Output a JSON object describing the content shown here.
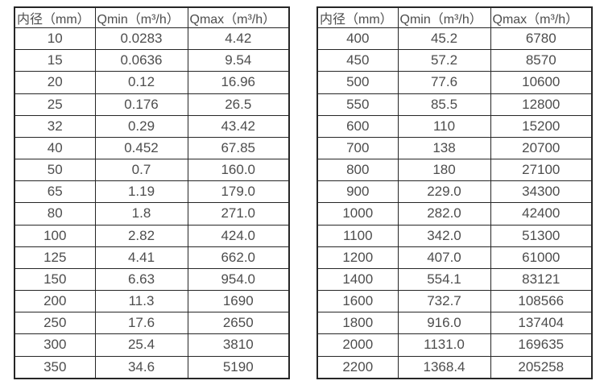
{
  "chart_data": [
    {
      "type": "table",
      "name": "flow-rate-table-small-diameters",
      "columns": [
        "内径（mm）",
        "Qmin（m³/h）",
        "Qmax（m³/h）"
      ],
      "rows": [
        [
          "10",
          "0.0283",
          "4.42"
        ],
        [
          "15",
          "0.0636",
          "9.54"
        ],
        [
          "20",
          "0.12",
          "16.96"
        ],
        [
          "25",
          "0.176",
          "26.5"
        ],
        [
          "32",
          "0.29",
          "43.42"
        ],
        [
          "40",
          "0.452",
          "67.85"
        ],
        [
          "50",
          "0.7",
          "160.0"
        ],
        [
          "65",
          "1.19",
          "179.0"
        ],
        [
          "80",
          "1.8",
          "271.0"
        ],
        [
          "100",
          "2.82",
          "424.0"
        ],
        [
          "125",
          "4.41",
          "662.0"
        ],
        [
          "150",
          "6.63",
          "954.0"
        ],
        [
          "200",
          "11.3",
          "1690"
        ],
        [
          "250",
          "17.6",
          "2650"
        ],
        [
          "300",
          "25.4",
          "3810"
        ],
        [
          "350",
          "34.6",
          "5190"
        ]
      ]
    },
    {
      "type": "table",
      "name": "flow-rate-table-large-diameters",
      "columns": [
        "内径（mm）",
        "Qmin（m³/h）",
        "Qmax（m³/h）"
      ],
      "rows": [
        [
          "400",
          "45.2",
          "6780"
        ],
        [
          "450",
          "57.2",
          "8570"
        ],
        [
          "500",
          "77.6",
          "10600"
        ],
        [
          "550",
          "85.5",
          "12800"
        ],
        [
          "600",
          "110",
          "15200"
        ],
        [
          "700",
          "138",
          "20700"
        ],
        [
          "800",
          "180",
          "27100"
        ],
        [
          "900",
          "229.0",
          "34300"
        ],
        [
          "1000",
          "282.0",
          "42400"
        ],
        [
          "1100",
          "342.0",
          "51300"
        ],
        [
          "1200",
          "407.0",
          "61000"
        ],
        [
          "1400",
          "554.1",
          "83121"
        ],
        [
          "1600",
          "732.7",
          "108566"
        ],
        [
          "1800",
          "916.0",
          "137404"
        ],
        [
          "2000",
          "1131.0",
          "169635"
        ],
        [
          "2200",
          "1368.4",
          "205258"
        ]
      ]
    }
  ],
  "colors": {
    "border": "#262626",
    "text": "#4d4d4d",
    "background": "#ffffff"
  }
}
